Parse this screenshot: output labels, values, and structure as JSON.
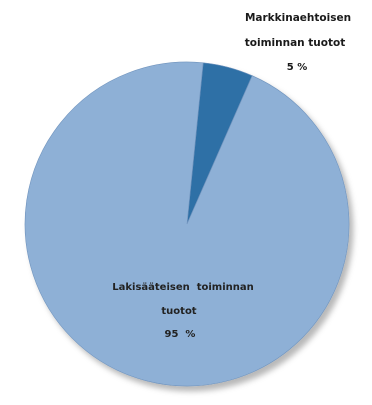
{
  "chart_data": {
    "type": "pie",
    "slices": [
      {
        "label_lines": [
          "Markkinaehtoisen",
          "toiminnan tuotot"
        ],
        "value_label": "5 %",
        "value": 5,
        "color": "#2f6fa6"
      },
      {
        "label_lines": [
          "Lakisääteisen  toiminnan",
          "tuotot"
        ],
        "value_label": "95  %",
        "value": 95,
        "color": "#8eb0d6"
      }
    ],
    "legend": "none"
  }
}
